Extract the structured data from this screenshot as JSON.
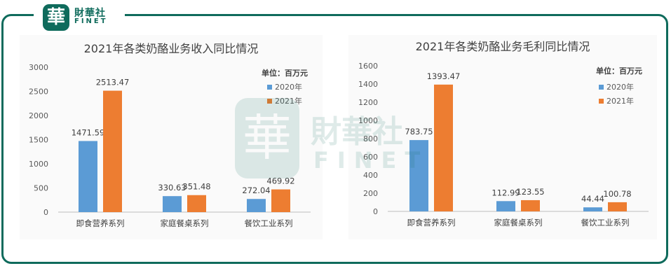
{
  "brand": {
    "logo_char": "華",
    "name_cn": "財華社",
    "name_en": "FINET",
    "color": "#0f6b5c"
  },
  "chart_data": [
    {
      "type": "bar",
      "title": "2021年各类奶酪业务收入同比情况",
      "unit_label": "单位：百万元",
      "categories": [
        "即食营养系列",
        "家庭餐桌系列",
        "餐饮工业系列"
      ],
      "series": [
        {
          "name": "2020年",
          "color": "#5b9bd5",
          "values": [
            1471.59,
            330.63,
            272.04
          ]
        },
        {
          "name": "2021年",
          "color": "#ed7d31",
          "values": [
            2513.47,
            351.48,
            469.92
          ]
        }
      ],
      "value_labels": [
        [
          "1471.59",
          "330.63",
          "272.04"
        ],
        [
          "2513.47",
          "351.48",
          "469.92"
        ]
      ],
      "yticks": [
        "0",
        "500",
        "1000",
        "1500",
        "2000",
        "2500",
        "3000"
      ],
      "ylim": [
        0,
        3000
      ],
      "legend_position": "top-right",
      "grid": false
    },
    {
      "type": "bar",
      "title": "2021年各类奶酪业务毛利同比情况",
      "unit_label": "单位：百万元",
      "categories": [
        "即食营养系列",
        "家庭餐桌系列",
        "餐饮工业系列"
      ],
      "series": [
        {
          "name": "2020年",
          "color": "#5b9bd5",
          "values": [
            783.75,
            112.99,
            44.44
          ]
        },
        {
          "name": "2021年",
          "color": "#ed7d31",
          "values": [
            1393.47,
            123.55,
            100.78
          ]
        }
      ],
      "value_labels": [
        [
          "783.75",
          "112.99",
          "44.44"
        ],
        [
          "1393.47",
          "123.55",
          "100.78"
        ]
      ],
      "yticks": [
        "0",
        "200",
        "400",
        "600",
        "800",
        "1000",
        "1200",
        "1400",
        "1600"
      ],
      "ylim": [
        0,
        1600
      ],
      "legend_position": "top-right",
      "grid": false
    }
  ]
}
